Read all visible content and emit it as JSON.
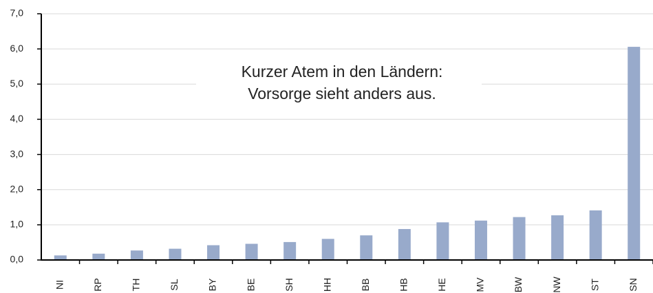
{
  "chart_data": {
    "type": "bar",
    "annotation": [
      "Kurzer Atem in den Ländern:",
      "Vorsorge sieht anders aus."
    ],
    "categories": [
      "NI",
      "RP",
      "TH",
      "SL",
      "BY",
      "BE",
      "SH",
      "HH",
      "BB",
      "HB",
      "HE",
      "MV",
      "BW",
      "NW",
      "ST",
      "SN"
    ],
    "values": [
      0.13,
      0.18,
      0.27,
      0.32,
      0.42,
      0.46,
      0.51,
      0.6,
      0.7,
      0.88,
      1.07,
      1.12,
      1.22,
      1.27,
      1.41,
      6.06
    ],
    "color": "#98aacb",
    "ylim": [
      0,
      7
    ],
    "yticks": [
      {
        "value": 0,
        "label": "0,0"
      },
      {
        "value": 1,
        "label": "1,0"
      },
      {
        "value": 2,
        "label": "2,0"
      },
      {
        "value": 3,
        "label": "3,0"
      },
      {
        "value": 4,
        "label": "4,0"
      },
      {
        "value": 5,
        "label": "5,0"
      },
      {
        "value": 6,
        "label": "6,0"
      },
      {
        "value": 7,
        "label": "7,0"
      }
    ],
    "grid": true
  }
}
